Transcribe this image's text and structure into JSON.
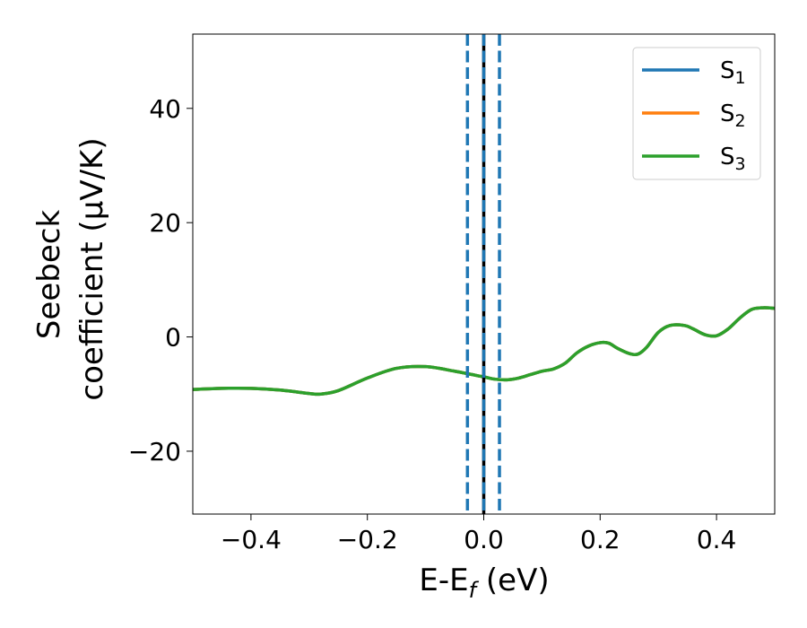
{
  "chart_data": {
    "type": "line",
    "xlabel": "E-E",
    "xlabel_sub": "f",
    "xlabel_unit": " (eV)",
    "ylabel_line1": "Seebeck",
    "ylabel_line2": "coefficient  (μV/K)",
    "xlim": [
      -0.5,
      0.5
    ],
    "ylim": [
      -31,
      53
    ],
    "xticks": [
      -0.4,
      -0.2,
      0.0,
      0.2,
      0.4
    ],
    "xtick_labels": [
      "−0.4",
      "−0.2",
      "0.0",
      "0.2",
      "0.4"
    ],
    "yticks": [
      -20,
      0,
      20,
      40
    ],
    "ytick_labels": [
      "−20",
      "0",
      "20",
      "40"
    ],
    "grid": false,
    "legend_position": "top-right",
    "series": [
      {
        "name": "S",
        "name_sub": "1",
        "color": "#1f77b4",
        "x": [
          -0.5,
          -0.45,
          -0.4,
          -0.35,
          -0.3,
          -0.28,
          -0.25,
          -0.2,
          -0.15,
          -0.1,
          -0.05,
          0.0,
          0.02,
          0.04,
          0.06,
          0.08,
          0.1,
          0.12,
          0.14,
          0.16,
          0.18,
          0.2,
          0.215,
          0.23,
          0.25,
          0.265,
          0.28,
          0.3,
          0.32,
          0.345,
          0.36,
          0.38,
          0.4,
          0.42,
          0.44,
          0.46,
          0.48,
          0.5
        ],
        "y": [
          -9.2,
          -9.0,
          -9.0,
          -9.3,
          -9.9,
          -10.0,
          -9.4,
          -7.2,
          -5.5,
          -5.2,
          -6.0,
          -7.0,
          -7.4,
          -7.5,
          -7.2,
          -6.6,
          -6.0,
          -5.6,
          -4.6,
          -2.8,
          -1.6,
          -1.0,
          -1.1,
          -2.0,
          -2.9,
          -3.0,
          -1.8,
          0.8,
          2.0,
          2.0,
          1.4,
          0.4,
          0.2,
          1.4,
          3.3,
          4.8,
          5.1,
          5.0
        ]
      },
      {
        "name": "S",
        "name_sub": "2",
        "color": "#ff7f0e",
        "x": [
          -0.5,
          -0.45,
          -0.4,
          -0.35,
          -0.3,
          -0.28,
          -0.25,
          -0.2,
          -0.15,
          -0.1,
          -0.05,
          0.0,
          0.02,
          0.04,
          0.06,
          0.08,
          0.1,
          0.12,
          0.14,
          0.16,
          0.18,
          0.2,
          0.215,
          0.23,
          0.25,
          0.265,
          0.28,
          0.3,
          0.32,
          0.345,
          0.36,
          0.38,
          0.4,
          0.42,
          0.44,
          0.46,
          0.48,
          0.5
        ],
        "y": [
          -9.2,
          -9.0,
          -9.0,
          -9.3,
          -9.9,
          -10.0,
          -9.4,
          -7.2,
          -5.5,
          -5.2,
          -6.0,
          -7.0,
          -7.4,
          -7.5,
          -7.2,
          -6.6,
          -6.0,
          -5.6,
          -4.6,
          -2.8,
          -1.6,
          -1.0,
          -1.1,
          -2.0,
          -2.9,
          -3.0,
          -1.8,
          0.8,
          2.0,
          2.0,
          1.4,
          0.4,
          0.2,
          1.4,
          3.3,
          4.8,
          5.1,
          5.0
        ]
      },
      {
        "name": "S",
        "name_sub": "3",
        "color": "#2ca02c",
        "x": [
          -0.5,
          -0.45,
          -0.4,
          -0.35,
          -0.3,
          -0.28,
          -0.25,
          -0.2,
          -0.15,
          -0.1,
          -0.05,
          0.0,
          0.02,
          0.04,
          0.06,
          0.08,
          0.1,
          0.12,
          0.14,
          0.16,
          0.18,
          0.2,
          0.215,
          0.23,
          0.25,
          0.265,
          0.28,
          0.3,
          0.32,
          0.345,
          0.36,
          0.38,
          0.4,
          0.42,
          0.44,
          0.46,
          0.48,
          0.5
        ],
        "y": [
          -9.2,
          -9.0,
          -9.0,
          -9.3,
          -9.9,
          -10.0,
          -9.4,
          -7.2,
          -5.5,
          -5.2,
          -6.0,
          -7.0,
          -7.4,
          -7.5,
          -7.2,
          -6.6,
          -6.0,
          -5.6,
          -4.6,
          -2.8,
          -1.6,
          -1.0,
          -1.1,
          -2.0,
          -2.9,
          -3.0,
          -1.8,
          0.8,
          2.0,
          2.0,
          1.4,
          0.4,
          0.2,
          1.4,
          3.3,
          4.8,
          5.1,
          5.0
        ]
      }
    ],
    "vlines": [
      {
        "x": -0.028,
        "color": "#1f77b4",
        "style": "dashed"
      },
      {
        "x": 0.0,
        "color": "#000000",
        "style": "solid"
      },
      {
        "x": 0.0,
        "color": "#1f77b4",
        "style": "dashed"
      },
      {
        "x": 0.027,
        "color": "#1f77b4",
        "style": "dashed"
      }
    ]
  }
}
